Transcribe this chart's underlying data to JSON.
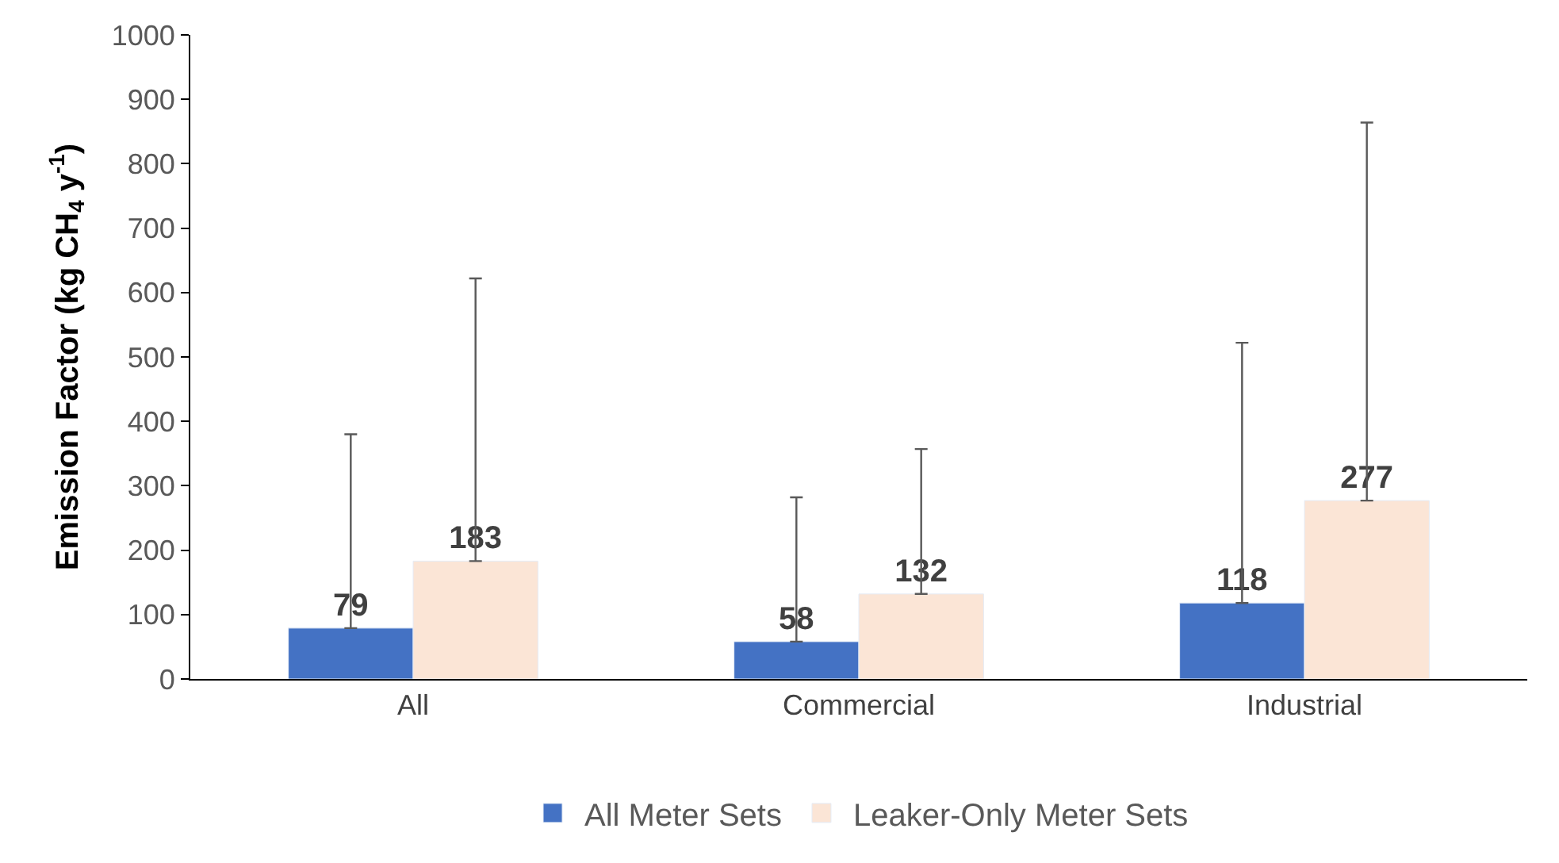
{
  "chart_data": {
    "type": "bar",
    "ylabel": "Emission Factor (kg CH$_{4}$ y$^{-1}$)",
    "categories": [
      "All",
      "Commercial",
      "Industrial"
    ],
    "series": [
      {
        "name": "All Meter Sets",
        "color": "#4472c4",
        "values": [
          79,
          58,
          118
        ],
        "errors": [
          [
            79,
            380
          ],
          [
            58,
            282
          ],
          [
            118,
            522
          ]
        ]
      },
      {
        "name": "Leaker-Only Meter Sets",
        "color": "#fbe5d6",
        "values": [
          183,
          132,
          277
        ],
        "errors": [
          [
            183,
            622
          ],
          [
            132,
            357
          ],
          [
            277,
            864
          ]
        ]
      }
    ],
    "ylim": [
      0,
      1000
    ],
    "yticks": [
      0,
      100,
      200,
      300,
      400,
      500,
      600,
      700,
      800,
      900,
      1000
    ],
    "data_labels": true,
    "legend": "bottom"
  }
}
